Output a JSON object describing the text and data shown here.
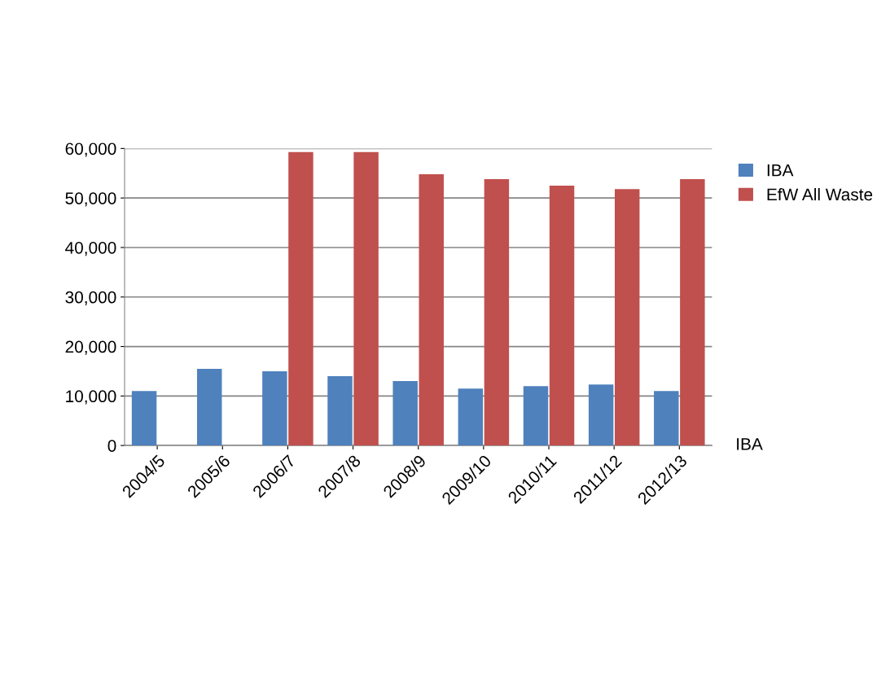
{
  "chart_data": {
    "type": "bar",
    "categories": [
      "2004/5",
      "2005/6",
      "2006/7",
      "2007/8",
      "2008/9",
      "2009/10",
      "2010/11",
      "2011/12",
      "2012/13"
    ],
    "series": [
      {
        "name": "IBA",
        "color": "#4f81bd",
        "values": [
          11000,
          15500,
          15000,
          14000,
          13000,
          11500,
          12000,
          12300,
          11000
        ]
      },
      {
        "name": "EfW All Waste",
        "color": "#c0504d",
        "values": [
          null,
          null,
          59300,
          59300,
          54800,
          53800,
          52500,
          51800,
          53800
        ]
      }
    ],
    "ylim": [
      0,
      60000
    ],
    "yticks": [
      {
        "value": 0,
        "label": "0"
      },
      {
        "value": 10000,
        "label": "10,000"
      },
      {
        "value": 20000,
        "label": "20,000"
      },
      {
        "value": 30000,
        "label": "30,000"
      },
      {
        "value": 40000,
        "label": "40,000"
      },
      {
        "value": 50000,
        "label": "50,000"
      },
      {
        "value": 60000,
        "label": "60,000"
      }
    ],
    "annotations": [
      "IBA"
    ],
    "grid": "y",
    "legend": "top right"
  }
}
